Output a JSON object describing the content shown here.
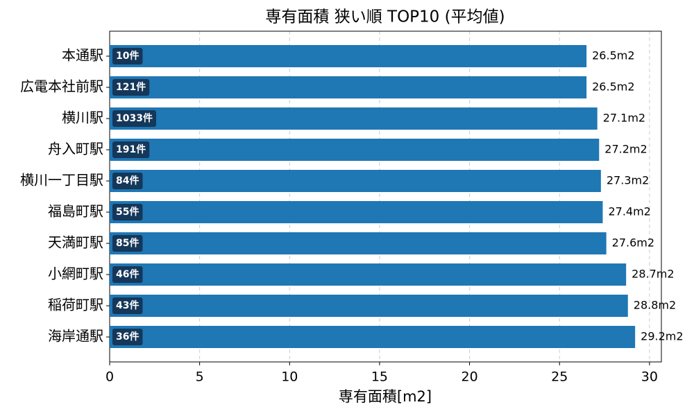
{
  "chart_data": {
    "type": "barh",
    "title": "専有面積 狭い順 TOP10 (平均値)",
    "x_label": "専有面積[m2]",
    "categories": [
      "本通駅",
      "広電本社前駅",
      "横川駅",
      "舟入町駅",
      "横川一丁目駅",
      "福島町駅",
      "天満町駅",
      "小網町駅",
      "稲荷町駅",
      "海岸通駅"
    ],
    "values": [
      26.5,
      26.5,
      27.1,
      27.2,
      27.3,
      27.4,
      27.6,
      28.7,
      28.8,
      29.2
    ],
    "value_labels": [
      "26.5m2",
      "26.5m2",
      "27.1m2",
      "27.2m2",
      "27.3m2",
      "27.4m2",
      "27.6m2",
      "28.7m2",
      "28.8m2",
      "29.2m2"
    ],
    "count_labels": [
      "10件",
      "121件",
      "1033件",
      "191件",
      "84件",
      "55件",
      "85件",
      "46件",
      "43件",
      "36件"
    ],
    "color": "#1f77b4",
    "count_label_color": "#14375a",
    "xlim": [
      0,
      30.66
    ],
    "xticks": [
      0,
      5,
      10,
      15,
      20,
      25,
      30
    ],
    "grid": true
  }
}
